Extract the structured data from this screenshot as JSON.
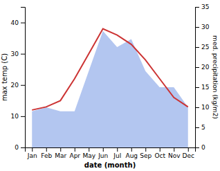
{
  "chart_data": {
    "type": "line",
    "xlabel": "date (month)",
    "ylabel": "max temp (C)",
    "y2label": "med. precipitation (kg/m2)",
    "categories": [
      "Jan",
      "Feb",
      "Mar",
      "Apr",
      "May",
      "Jun",
      "Jul",
      "Aug",
      "Sep",
      "Oct",
      "Nov",
      "Dec"
    ],
    "series": [
      {
        "type": "area",
        "axis": "y2",
        "color": "#b3c6f0",
        "values": [
          9,
          10,
          9,
          9,
          19,
          29,
          25,
          27,
          19,
          15,
          15,
          10
        ]
      },
      {
        "type": "line",
        "color": "#cc3333",
        "values": [
          12,
          13,
          15,
          22,
          30,
          38,
          36,
          33,
          28,
          22,
          16,
          13
        ]
      }
    ],
    "ylim": [
      0,
      45
    ],
    "yticks": [
      0,
      10,
      20,
      30,
      40
    ],
    "y2lim": [
      0,
      35
    ],
    "y2ticks": [
      0,
      5,
      10,
      15,
      20,
      25,
      30,
      35
    ]
  }
}
